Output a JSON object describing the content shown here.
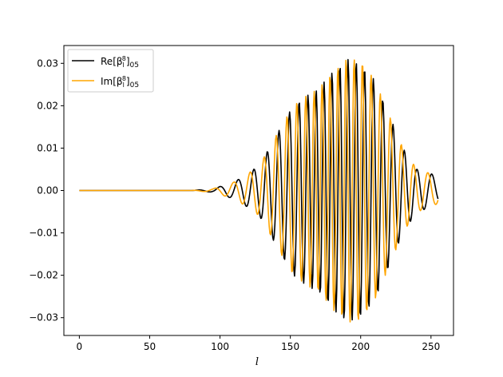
{
  "chart_data": {
    "type": "line",
    "title": "",
    "xlabel": "l",
    "ylabel": "",
    "xlim": [
      -11,
      266
    ],
    "ylim": [
      -0.0342,
      0.0342
    ],
    "x_ticks": [
      0,
      50,
      100,
      150,
      200,
      250
    ],
    "x_tick_labels": [
      "0",
      "50",
      "100",
      "150",
      "200",
      "250"
    ],
    "y_ticks": [
      -0.03,
      -0.02,
      -0.01,
      0.0,
      0.01,
      0.02,
      0.03
    ],
    "y_tick_labels": [
      "−0.03",
      "−0.02",
      "−0.01",
      "0.00",
      "0.01",
      "0.02",
      "0.03"
    ],
    "grid": false,
    "legend": {
      "placement": "top-left"
    },
    "sampling": {
      "x_start": 0,
      "x_end": 255,
      "step": 0.5
    },
    "series": [
      {
        "name": "Re[βˡ⁸]₀₅",
        "legend_prefix": "Re",
        "legend_sub": "l",
        "legend_sup": "8",
        "legend_suffix": "05",
        "color": "#000000",
        "phase": 0.0,
        "envelope": [
          [
            0,
            0
          ],
          [
            80,
            0.0
          ],
          [
            95,
            0.0004
          ],
          [
            110,
            0.002
          ],
          [
            120,
            0.004
          ],
          [
            128,
            0.006
          ],
          [
            135,
            0.01
          ],
          [
            145,
            0.016
          ],
          [
            152,
            0.02
          ],
          [
            160,
            0.022
          ],
          [
            170,
            0.024
          ],
          [
            180,
            0.028
          ],
          [
            190,
            0.031
          ],
          [
            200,
            0.03
          ],
          [
            210,
            0.026
          ],
          [
            220,
            0.018
          ],
          [
            230,
            0.01
          ],
          [
            240,
            0.005
          ],
          [
            250,
            0.004
          ],
          [
            255,
            0.003
          ]
        ],
        "freq": [
          [
            0,
            0.02
          ],
          [
            90,
            0.06
          ],
          [
            120,
            0.09
          ],
          [
            150,
            0.14
          ],
          [
            170,
            0.18
          ],
          [
            200,
            0.17
          ],
          [
            230,
            0.12
          ],
          [
            255,
            0.08
          ]
        ]
      },
      {
        "name": "Im[βˡ⁸]₀₅",
        "legend_prefix": "Im",
        "legend_sub": "l",
        "legend_sup": "8",
        "legend_suffix": "05",
        "color": "#ffa500",
        "phase": 1.5708,
        "envelope": [
          [
            0,
            0
          ],
          [
            80,
            0.0
          ],
          [
            95,
            0.0004
          ],
          [
            110,
            0.002
          ],
          [
            120,
            0.004
          ],
          [
            128,
            0.006
          ],
          [
            135,
            0.01
          ],
          [
            145,
            0.016
          ],
          [
            152,
            0.02
          ],
          [
            160,
            0.022
          ],
          [
            170,
            0.024
          ],
          [
            180,
            0.028
          ],
          [
            190,
            0.031
          ],
          [
            200,
            0.031
          ],
          [
            210,
            0.026
          ],
          [
            220,
            0.018
          ],
          [
            230,
            0.01
          ],
          [
            240,
            0.005
          ],
          [
            250,
            0.004
          ],
          [
            255,
            0.003
          ]
        ],
        "freq": [
          [
            0,
            0.02
          ],
          [
            90,
            0.06
          ],
          [
            120,
            0.09
          ],
          [
            150,
            0.14
          ],
          [
            170,
            0.18
          ],
          [
            200,
            0.17
          ],
          [
            230,
            0.12
          ],
          [
            255,
            0.08
          ]
        ]
      }
    ]
  }
}
